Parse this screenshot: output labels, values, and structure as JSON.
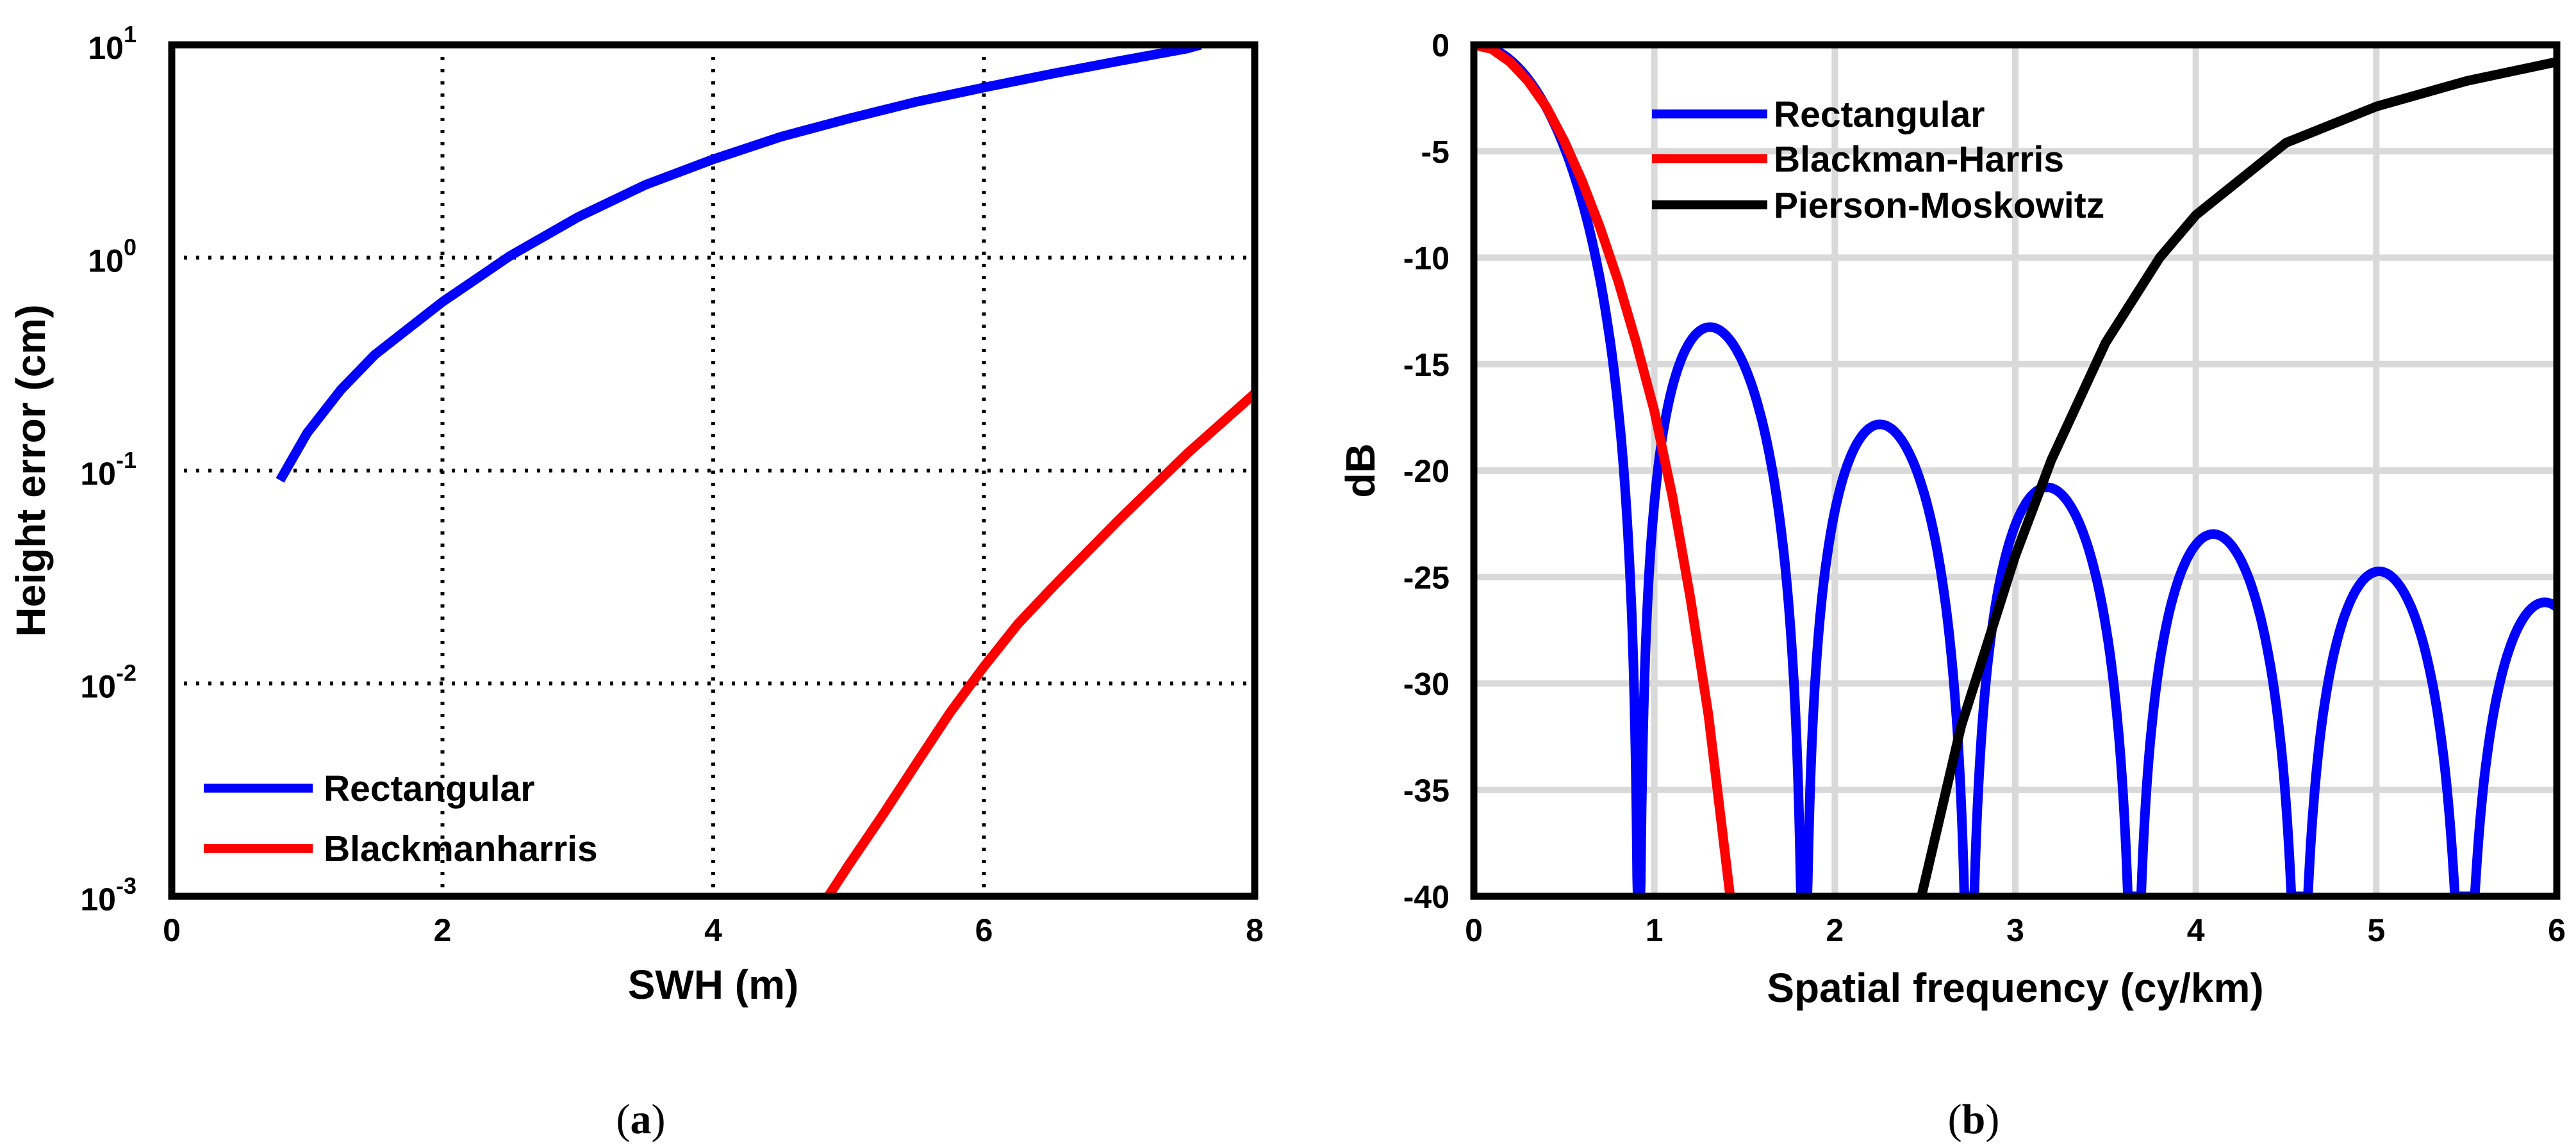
{
  "chart_data": [
    {
      "type": "line",
      "panel": "a",
      "caption": "a",
      "xlabel": "SWH (m)",
      "ylabel": "Height error (cm)",
      "yscale": "log",
      "xlim": [
        0,
        8
      ],
      "ylim": [
        0.001,
        10
      ],
      "xticks": [
        "0",
        "2",
        "4",
        "6",
        "8"
      ],
      "yticks": [
        {
          "base": "10",
          "exp": "-3"
        },
        {
          "base": "10",
          "exp": "-2"
        },
        {
          "base": "10",
          "exp": "-1"
        },
        {
          "base": "10",
          "exp": "0"
        },
        {
          "base": "10",
          "exp": "1"
        }
      ],
      "grid": "dotted",
      "legend_position": "bottom-left",
      "series": [
        {
          "name": "Rectangular",
          "color": "#0000ff",
          "x": [
            0.8,
            1.0,
            1.25,
            1.5,
            2.0,
            2.5,
            3.0,
            3.5,
            4.0,
            4.5,
            5.0,
            5.5,
            6.0,
            6.5,
            7.0,
            7.5,
            7.6
          ],
          "y": [
            0.09,
            0.15,
            0.24,
            0.35,
            0.62,
            1.02,
            1.55,
            2.2,
            2.9,
            3.7,
            4.5,
            5.4,
            6.3,
            7.3,
            8.4,
            9.6,
            10.0
          ]
        },
        {
          "name": "Blackmanharris",
          "color": "#ff0000",
          "x": [
            4.85,
            5.0,
            5.25,
            5.5,
            5.75,
            6.0,
            6.25,
            6.5,
            7.0,
            7.5,
            8.0
          ],
          "y": [
            0.001,
            0.0014,
            0.0024,
            0.0042,
            0.0073,
            0.012,
            0.019,
            0.028,
            0.059,
            0.12,
            0.23
          ]
        }
      ]
    },
    {
      "type": "line",
      "panel": "b",
      "caption": "b",
      "xlabel": "Spatial frequency (cy/km)",
      "ylabel": "dB",
      "xlim": [
        0,
        6
      ],
      "ylim": [
        -40,
        0
      ],
      "xticks": [
        "0",
        "1",
        "2",
        "3",
        "4",
        "5",
        "6"
      ],
      "yticks": [
        "0",
        "-5",
        "-10",
        "-15",
        "-20",
        "-25",
        "-30",
        "-35",
        "-40"
      ],
      "grid": "solid",
      "legend_position": "top-left",
      "series": [
        {
          "name": "Rectangular",
          "color": "#0000ff",
          "model": "sinc",
          "first_null": 0.915,
          "sidelobe_peaks": [
            {
              "x": 1.3,
              "y": -13.3
            },
            {
              "x": 2.24,
              "y": -17.9
            },
            {
              "x": 3.17,
              "y": -20.8
            },
            {
              "x": 4.09,
              "y": -23.0
            },
            {
              "x": 5.01,
              "y": -24.8
            },
            {
              "x": 5.94,
              "y": -26.3
            }
          ]
        },
        {
          "name": "Blackman-Harris",
          "color": "#ff0000",
          "x": [
            0.0,
            0.1,
            0.2,
            0.3,
            0.4,
            0.5,
            0.6,
            0.7,
            0.8,
            0.9,
            1.0,
            1.1,
            1.2,
            1.3,
            1.42
          ],
          "y": [
            0.0,
            -0.2,
            -0.8,
            -1.7,
            -2.9,
            -4.5,
            -6.4,
            -8.6,
            -11.1,
            -14.0,
            -17.2,
            -21.2,
            -26.0,
            -31.5,
            -40.0
          ]
        },
        {
          "name": "Pierson-Moskowitz",
          "color": "#000000",
          "x": [
            2.48,
            2.7,
            3.0,
            3.2,
            3.5,
            3.8,
            4.0,
            4.5,
            5.0,
            5.5,
            6.0
          ],
          "y": [
            -40.0,
            -32.0,
            -24.0,
            -19.5,
            -14.0,
            -10.0,
            -8.0,
            -4.6,
            -2.9,
            -1.7,
            -0.8
          ]
        }
      ]
    }
  ]
}
